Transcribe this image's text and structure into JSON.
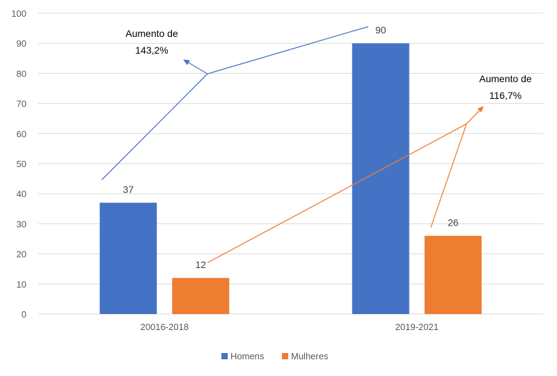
{
  "chart_data": {
    "type": "bar",
    "categories": [
      "20016-2018",
      "2019-2021"
    ],
    "series": [
      {
        "name": "Homens",
        "values": [
          37,
          90
        ],
        "color": "#4472C4"
      },
      {
        "name": "Mulheres",
        "values": [
          12,
          26
        ],
        "color": "#ED7D31"
      }
    ],
    "ylim": [
      0,
      100
    ],
    "yticks": [
      0,
      10,
      20,
      30,
      40,
      50,
      60,
      70,
      80,
      90,
      100
    ],
    "grid": true,
    "legend_position": "bottom",
    "annotations": [
      {
        "lines": [
          "Aumento de",
          "143,2%"
        ],
        "series": "Homens",
        "color": "#4472C4"
      },
      {
        "lines": [
          "Aumento de",
          "116,7%"
        ],
        "series": "Mulheres",
        "color": "#ED7D31"
      }
    ]
  }
}
